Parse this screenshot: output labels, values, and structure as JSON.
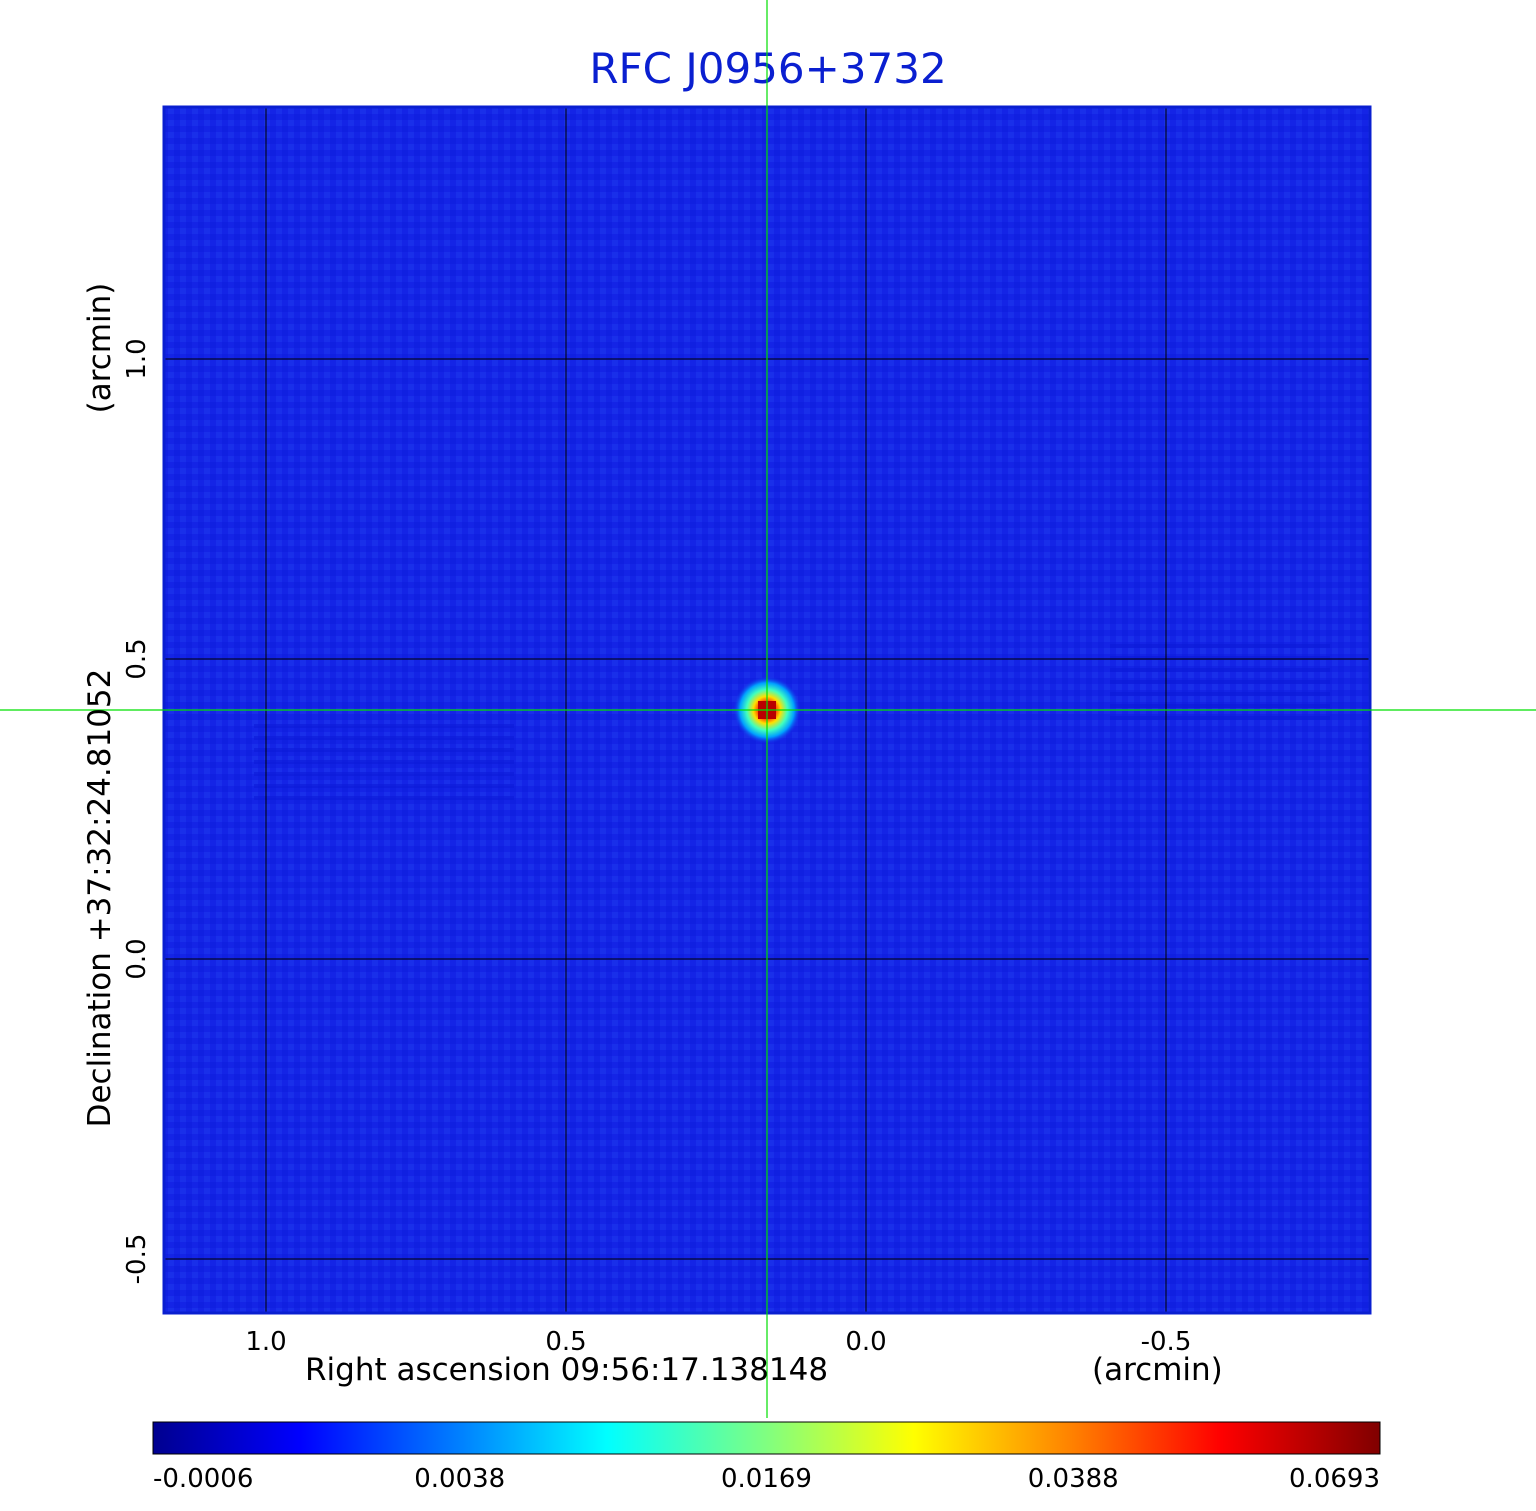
{
  "chart_data": {
    "type": "heatmap",
    "title": "RFC J0956+3732",
    "xlabel": "Right ascension  09:56:17.138148",
    "xunit": "(arcmin)",
    "ylabel": "Declination  +37:32:24.81052",
    "yunit": "(arcmin)",
    "x_ticks": [
      1.0,
      0.5,
      0.0,
      -0.5
    ],
    "x_tick_labels": [
      "1.0",
      "0.5",
      "0.0",
      "-0.5"
    ],
    "y_ticks": [
      1.0,
      0.5,
      0.0,
      -0.5
    ],
    "y_tick_labels": [
      "1.0",
      "0.5",
      "0.0",
      "-0.5"
    ],
    "xlim": [
      1.17,
      -0.84
    ],
    "ylim": [
      -0.59,
      1.42
    ],
    "grid": true,
    "crosshair": {
      "x": 0.165,
      "y": 0.415
    },
    "peak": {
      "x": 0.165,
      "y": 0.415,
      "value": 0.0693
    },
    "colorbar": {
      "tick_labels": [
        "-0.0006",
        "0.0038",
        "0.0169",
        "0.0388",
        "0.0693"
      ],
      "colormap": [
        "#00008f",
        "#0000ff",
        "#0080ff",
        "#00ffff",
        "#80ff80",
        "#ffff00",
        "#ff8000",
        "#ff0000",
        "#800000"
      ]
    },
    "background_color": "#1424e6",
    "crosshair_color": "#00e000",
    "frame_color": "#0a1fd0"
  }
}
